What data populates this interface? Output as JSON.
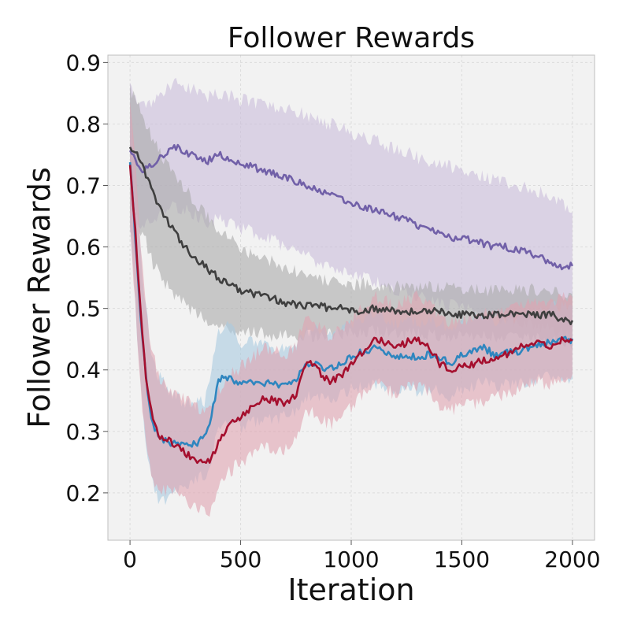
{
  "chart_data": {
    "type": "line",
    "title": "Follower Rewards",
    "xlabel": "Iteration",
    "ylabel": "Follower Rewards",
    "xlim": [
      -100,
      2100
    ],
    "ylim": [
      0.123,
      0.912
    ],
    "xticks": [
      0,
      500,
      1000,
      1500,
      2000
    ],
    "xtick_labels": [
      "0",
      "500",
      "1000",
      "1500",
      "2000"
    ],
    "yticks": [
      0.2,
      0.3,
      0.4,
      0.5,
      0.6,
      0.7,
      0.8,
      0.9
    ],
    "ytick_labels": [
      "0.2",
      "0.3",
      "0.4",
      "0.5",
      "0.6",
      "0.7",
      "0.8",
      "0.9"
    ],
    "grid": true,
    "background_color": "#f2f2f2",
    "series": [
      {
        "name": "purple",
        "color": "#7160a8",
        "band_color": "#c9bcdb",
        "x": [
          0,
          20,
          50,
          100,
          150,
          200,
          250,
          300,
          350,
          400,
          450,
          500,
          550,
          600,
          650,
          700,
          750,
          800,
          850,
          900,
          950,
          1000,
          1050,
          1100,
          1150,
          1200,
          1250,
          1300,
          1350,
          1400,
          1450,
          1500,
          1550,
          1600,
          1650,
          1700,
          1750,
          1800,
          1850,
          1900,
          1950,
          2000
        ],
        "mean": [
          0.76,
          0.745,
          0.725,
          0.735,
          0.75,
          0.765,
          0.755,
          0.745,
          0.74,
          0.75,
          0.745,
          0.735,
          0.73,
          0.725,
          0.72,
          0.715,
          0.705,
          0.7,
          0.69,
          0.685,
          0.68,
          0.67,
          0.665,
          0.66,
          0.655,
          0.65,
          0.645,
          0.635,
          0.63,
          0.625,
          0.615,
          0.615,
          0.61,
          0.605,
          0.6,
          0.6,
          0.595,
          0.59,
          0.585,
          0.575,
          0.565,
          0.57
        ],
        "lower": [
          0.625,
          0.625,
          0.635,
          0.645,
          0.66,
          0.665,
          0.66,
          0.65,
          0.64,
          0.645,
          0.64,
          0.63,
          0.625,
          0.615,
          0.61,
          0.6,
          0.59,
          0.585,
          0.575,
          0.57,
          0.56,
          0.555,
          0.55,
          0.545,
          0.535,
          0.53,
          0.525,
          0.52,
          0.515,
          0.51,
          0.505,
          0.5,
          0.495,
          0.49,
          0.485,
          0.48,
          0.48,
          0.475,
          0.47,
          0.465,
          0.46,
          0.46
        ],
        "upper": [
          0.86,
          0.85,
          0.83,
          0.835,
          0.85,
          0.865,
          0.86,
          0.855,
          0.845,
          0.85,
          0.845,
          0.84,
          0.835,
          0.83,
          0.83,
          0.825,
          0.82,
          0.815,
          0.805,
          0.8,
          0.795,
          0.785,
          0.78,
          0.775,
          0.765,
          0.76,
          0.755,
          0.745,
          0.74,
          0.735,
          0.73,
          0.72,
          0.72,
          0.715,
          0.71,
          0.705,
          0.7,
          0.695,
          0.69,
          0.68,
          0.67,
          0.665
        ]
      },
      {
        "name": "gray",
        "color": "#3f3f3f",
        "band_color": "#aaaaaa",
        "x": [
          0,
          25,
          50,
          75,
          100,
          150,
          200,
          250,
          300,
          350,
          400,
          450,
          500,
          550,
          600,
          650,
          700,
          750,
          800,
          850,
          900,
          950,
          1000,
          1100,
          1200,
          1300,
          1400,
          1500,
          1600,
          1700,
          1800,
          1900,
          2000
        ],
        "mean": [
          0.765,
          0.755,
          0.735,
          0.715,
          0.69,
          0.655,
          0.625,
          0.6,
          0.58,
          0.565,
          0.55,
          0.54,
          0.53,
          0.525,
          0.52,
          0.515,
          0.51,
          0.505,
          0.505,
          0.505,
          0.5,
          0.5,
          0.495,
          0.5,
          0.495,
          0.495,
          0.495,
          0.49,
          0.49,
          0.49,
          0.49,
          0.49,
          0.478
        ],
        "lower": [
          0.655,
          0.65,
          0.625,
          0.605,
          0.575,
          0.545,
          0.52,
          0.505,
          0.49,
          0.48,
          0.47,
          0.465,
          0.46,
          0.46,
          0.46,
          0.455,
          0.455,
          0.455,
          0.455,
          0.455,
          0.46,
          0.46,
          0.46,
          0.465,
          0.46,
          0.46,
          0.455,
          0.455,
          0.455,
          0.455,
          0.45,
          0.45,
          0.44
        ],
        "upper": [
          0.855,
          0.845,
          0.82,
          0.8,
          0.775,
          0.745,
          0.715,
          0.695,
          0.67,
          0.65,
          0.63,
          0.615,
          0.6,
          0.59,
          0.58,
          0.575,
          0.565,
          0.56,
          0.555,
          0.55,
          0.545,
          0.545,
          0.54,
          0.54,
          0.535,
          0.535,
          0.535,
          0.53,
          0.53,
          0.53,
          0.53,
          0.53,
          0.515
        ]
      },
      {
        "name": "blue",
        "color": "#2f86bf",
        "band_color": "#a8cae0",
        "x": [
          0,
          25,
          50,
          75,
          100,
          130,
          160,
          200,
          250,
          300,
          340,
          370,
          400,
          450,
          500,
          550,
          600,
          650,
          700,
          750,
          800,
          850,
          900,
          950,
          1000,
          1050,
          1100,
          1150,
          1200,
          1250,
          1300,
          1350,
          1400,
          1450,
          1500,
          1550,
          1600,
          1650,
          1700,
          1750,
          1800,
          1850,
          1900,
          1950,
          2000
        ],
        "mean": [
          0.74,
          0.61,
          0.47,
          0.38,
          0.315,
          0.29,
          0.285,
          0.28,
          0.275,
          0.28,
          0.29,
          0.33,
          0.385,
          0.39,
          0.375,
          0.38,
          0.38,
          0.375,
          0.38,
          0.385,
          0.41,
          0.41,
          0.4,
          0.41,
          0.42,
          0.43,
          0.435,
          0.43,
          0.42,
          0.425,
          0.42,
          0.425,
          0.42,
          0.41,
          0.425,
          0.43,
          0.435,
          0.425,
          0.43,
          0.43,
          0.435,
          0.44,
          0.445,
          0.45,
          0.445
        ],
        "lower": [
          0.64,
          0.5,
          0.36,
          0.27,
          0.215,
          0.185,
          0.19,
          0.2,
          0.215,
          0.22,
          0.23,
          0.26,
          0.31,
          0.32,
          0.305,
          0.315,
          0.32,
          0.32,
          0.325,
          0.33,
          0.355,
          0.355,
          0.35,
          0.36,
          0.37,
          0.375,
          0.38,
          0.375,
          0.365,
          0.37,
          0.365,
          0.37,
          0.365,
          0.355,
          0.37,
          0.375,
          0.38,
          0.37,
          0.375,
          0.375,
          0.38,
          0.385,
          0.39,
          0.39,
          0.385
        ],
        "upper": [
          0.83,
          0.72,
          0.58,
          0.49,
          0.42,
          0.39,
          0.375,
          0.36,
          0.345,
          0.345,
          0.35,
          0.4,
          0.465,
          0.47,
          0.445,
          0.445,
          0.44,
          0.435,
          0.44,
          0.445,
          0.465,
          0.465,
          0.455,
          0.465,
          0.475,
          0.485,
          0.49,
          0.485,
          0.475,
          0.48,
          0.475,
          0.48,
          0.475,
          0.465,
          0.48,
          0.485,
          0.49,
          0.48,
          0.485,
          0.485,
          0.49,
          0.495,
          0.5,
          0.505,
          0.5
        ]
      },
      {
        "name": "red",
        "color": "#a50f2e",
        "band_color": "#e0a3b0",
        "x": [
          0,
          25,
          50,
          75,
          100,
          130,
          160,
          200,
          250,
          300,
          340,
          370,
          400,
          450,
          500,
          550,
          600,
          650,
          700,
          750,
          800,
          850,
          900,
          950,
          1000,
          1050,
          1100,
          1150,
          1200,
          1250,
          1300,
          1350,
          1400,
          1450,
          1500,
          1550,
          1600,
          1650,
          1700,
          1750,
          1800,
          1850,
          1900,
          1950,
          2000
        ],
        "mean": [
          0.735,
          0.62,
          0.48,
          0.38,
          0.325,
          0.29,
          0.29,
          0.28,
          0.265,
          0.255,
          0.25,
          0.255,
          0.285,
          0.31,
          0.325,
          0.34,
          0.355,
          0.35,
          0.345,
          0.36,
          0.415,
          0.4,
          0.38,
          0.39,
          0.41,
          0.43,
          0.45,
          0.445,
          0.435,
          0.445,
          0.45,
          0.44,
          0.41,
          0.4,
          0.405,
          0.41,
          0.415,
          0.42,
          0.425,
          0.435,
          0.44,
          0.445,
          0.44,
          0.45,
          0.45
        ],
        "lower": [
          0.625,
          0.5,
          0.36,
          0.27,
          0.22,
          0.2,
          0.205,
          0.2,
          0.185,
          0.175,
          0.165,
          0.175,
          0.21,
          0.235,
          0.25,
          0.26,
          0.275,
          0.27,
          0.27,
          0.285,
          0.335,
          0.325,
          0.31,
          0.32,
          0.34,
          0.36,
          0.375,
          0.37,
          0.36,
          0.37,
          0.375,
          0.365,
          0.34,
          0.335,
          0.34,
          0.345,
          0.35,
          0.355,
          0.36,
          0.37,
          0.375,
          0.38,
          0.375,
          0.385,
          0.385
        ],
        "upper": [
          0.84,
          0.73,
          0.59,
          0.49,
          0.43,
          0.39,
          0.375,
          0.36,
          0.35,
          0.34,
          0.335,
          0.34,
          0.365,
          0.39,
          0.405,
          0.42,
          0.435,
          0.43,
          0.425,
          0.44,
          0.49,
          0.475,
          0.455,
          0.465,
          0.485,
          0.5,
          0.52,
          0.515,
          0.505,
          0.515,
          0.52,
          0.51,
          0.485,
          0.475,
          0.48,
          0.485,
          0.49,
          0.49,
          0.495,
          0.505,
          0.51,
          0.515,
          0.51,
          0.52,
          0.52
        ]
      }
    ]
  }
}
